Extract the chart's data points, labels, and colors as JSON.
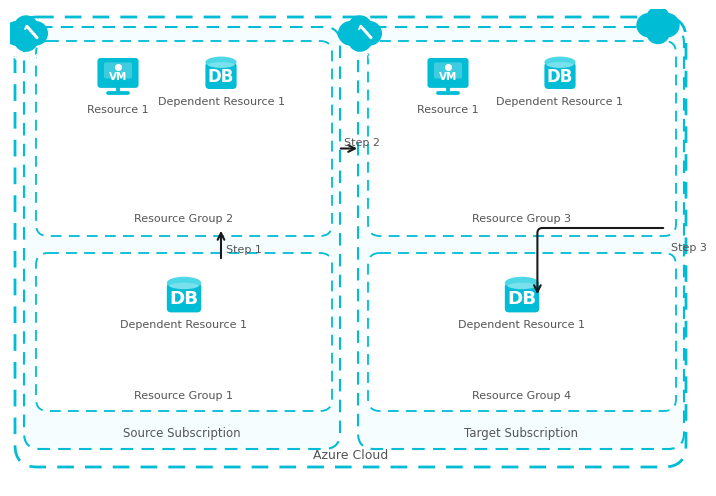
{
  "bg_color": "#ffffff",
  "cyan": "#00bcd4",
  "light_cyan_fill": "#f5fdff",
  "text_gray": "#555555",
  "arrow_color": "#1a1a1a",
  "title": "Azure Cloud",
  "source_sub_label": "Source Subscription",
  "target_sub_label": "Target Subscription",
  "rg_labels": [
    "Resource Group 2",
    "Resource Group 1",
    "Resource Group 3",
    "Resource Group 4"
  ],
  "step_labels": [
    "Step 1",
    "Step 2",
    "Step 3"
  ],
  "azure_label": "Azure",
  "res1_label": "Resource 1",
  "dep_res1_label": "Dependent Resource 1"
}
